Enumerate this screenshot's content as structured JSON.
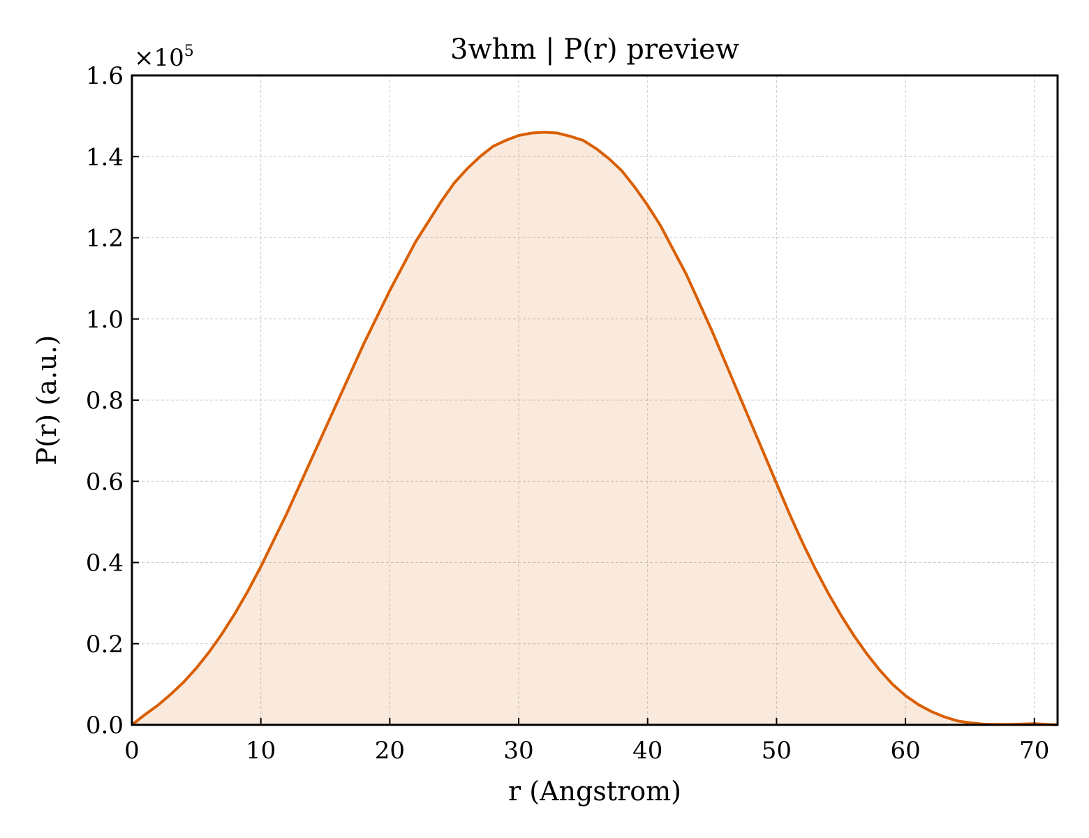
{
  "colors": {
    "line": "#d95f02",
    "fill": "#d95f02",
    "grid": "#cccccc",
    "axis": "#000000"
  },
  "chart_data": {
    "type": "area",
    "title": "3whm | P(r) preview",
    "xlabel": "r (Angstrom)",
    "ylabel": "P(r) (a.u.)",
    "y_multiplier_label": "×10",
    "y_multiplier_exponent": "5",
    "xlim": [
      0,
      71.8
    ],
    "ylim": [
      0,
      1.6
    ],
    "y_scale_factor": 100000,
    "grid": true,
    "x_ticks": [
      0,
      10,
      20,
      30,
      40,
      50,
      60,
      70
    ],
    "x_tick_labels": [
      "0",
      "10",
      "20",
      "30",
      "40",
      "50",
      "60",
      "70"
    ],
    "y_ticks": [
      0,
      0.2,
      0.4,
      0.6,
      0.8,
      1.0,
      1.2,
      1.4,
      1.6
    ],
    "y_tick_labels": [
      "0.0",
      "0.2",
      "0.4",
      "0.6",
      "0.8",
      "1.0",
      "1.2",
      "1.4",
      "1.6"
    ],
    "series": [
      {
        "x": [
          0,
          1,
          2,
          3,
          4,
          5,
          6,
          7,
          8,
          9,
          10,
          11,
          12,
          13,
          14,
          15,
          16,
          17,
          18,
          19,
          20,
          21,
          22,
          23,
          24,
          25,
          26,
          27,
          28,
          29,
          30,
          31,
          32,
          33,
          34,
          35,
          36,
          37,
          38,
          39,
          40,
          41,
          42,
          43,
          44,
          45,
          46,
          47,
          48,
          49,
          50,
          51,
          52,
          53,
          54,
          55,
          56,
          57,
          58,
          59,
          60,
          61,
          62,
          63,
          64,
          65,
          66,
          67,
          68,
          69,
          70,
          71,
          71.8
        ],
        "y": [
          0,
          0.025,
          0.048,
          0.075,
          0.105,
          0.14,
          0.18,
          0.225,
          0.275,
          0.33,
          0.39,
          0.455,
          0.52,
          0.59,
          0.66,
          0.73,
          0.8,
          0.87,
          0.94,
          1.005,
          1.07,
          1.13,
          1.19,
          1.24,
          1.29,
          1.335,
          1.37,
          1.4,
          1.425,
          1.44,
          1.452,
          1.458,
          1.46,
          1.458,
          1.45,
          1.44,
          1.42,
          1.395,
          1.365,
          1.325,
          1.28,
          1.23,
          1.17,
          1.11,
          1.04,
          0.97,
          0.895,
          0.82,
          0.745,
          0.67,
          0.595,
          0.52,
          0.45,
          0.385,
          0.325,
          0.27,
          0.22,
          0.175,
          0.135,
          0.1,
          0.072,
          0.05,
          0.033,
          0.02,
          0.01,
          0.005,
          0.002,
          0.001,
          0.001,
          0.002,
          0.003,
          0.001,
          0
        ]
      }
    ]
  }
}
